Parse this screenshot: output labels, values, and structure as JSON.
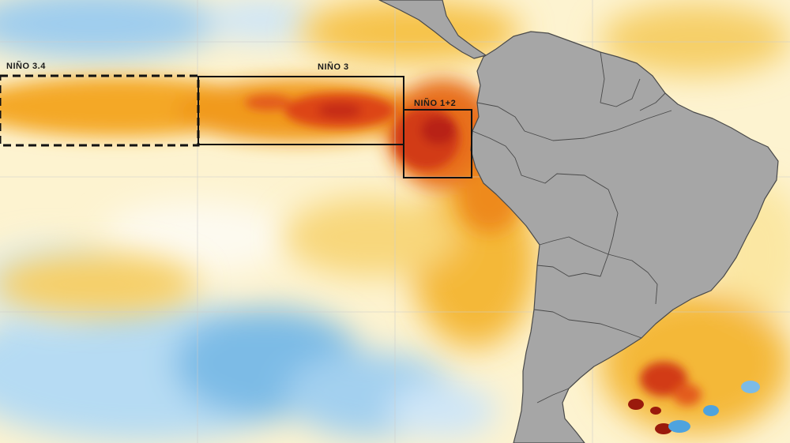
{
  "map": {
    "regions": [
      {
        "id": "nino34",
        "label": "NIÑO 3.4",
        "style": "dashed"
      },
      {
        "id": "nino3",
        "label": "NIÑO 3",
        "style": "solid"
      },
      {
        "id": "nino12",
        "label": "NIÑO 1+2",
        "style": "solid"
      }
    ],
    "colors": {
      "land": "#a6a6a6",
      "border": "#4a4a4a",
      "warm_light": "#fbe7a3",
      "warm_medium": "#f6c249",
      "warm_strong": "#f19a1c",
      "hot": "#e0491b",
      "very_hot": "#c42a12",
      "neutral": "#fdf8e8",
      "cool_light": "#cde6f6",
      "cool": "#7cbbe6"
    }
  }
}
